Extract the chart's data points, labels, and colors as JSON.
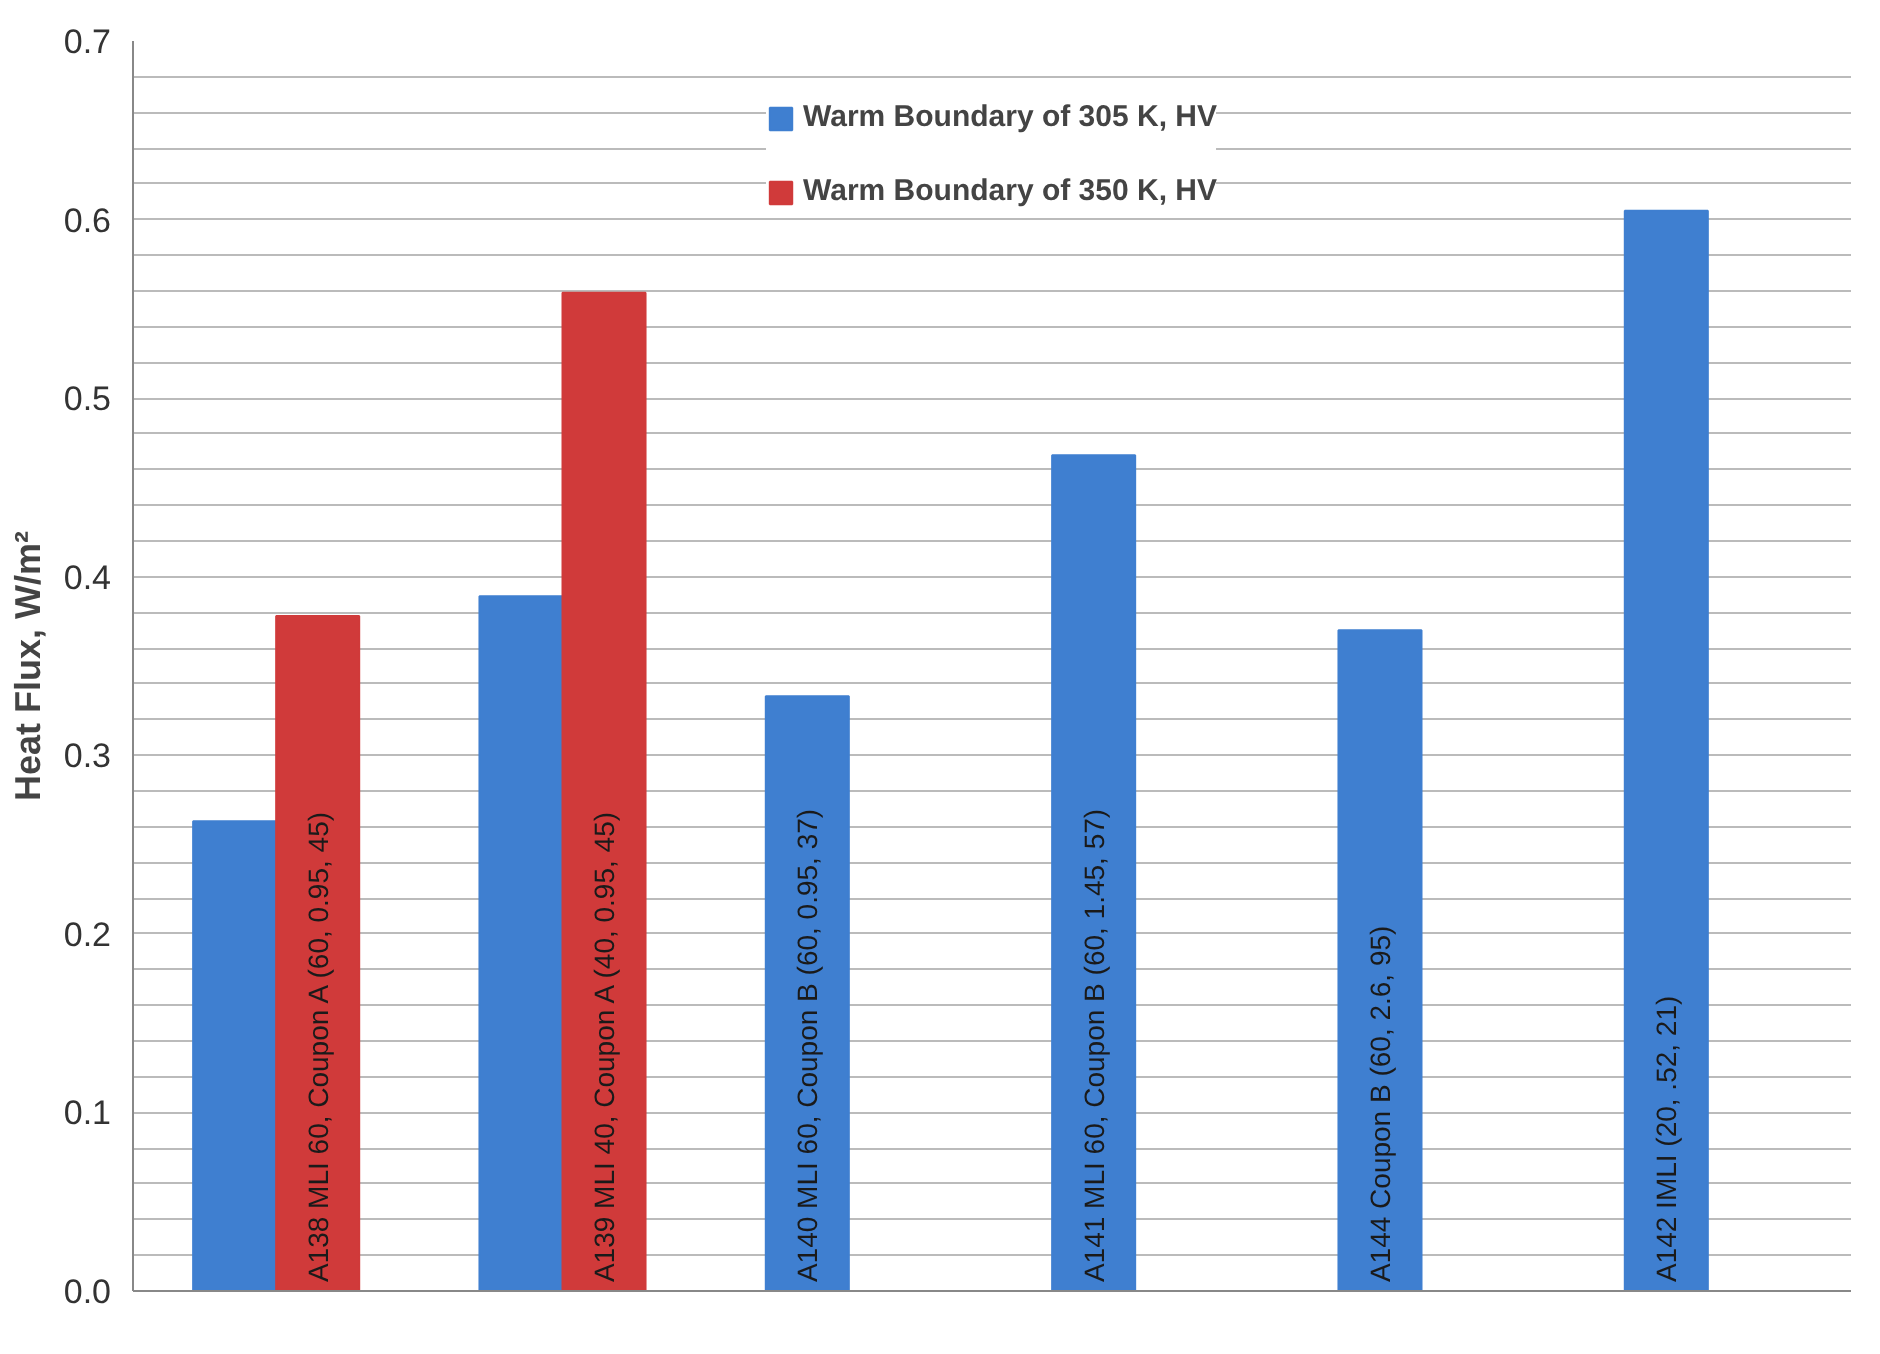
{
  "chart_data": {
    "type": "bar",
    "ylabel": "Heat Flux, W/m²",
    "categories": [
      "A138 MLI 60, Coupon A (60, 0.95, 45)",
      "A139 MLI 40, Coupon A (40, 0.95, 45)",
      "A140 MLI 60, Coupon B (60, 0.95, 37)",
      "A141 MLI 60, Coupon B (60, 1.45, 57)",
      "A144 Coupon B (60, 2.6, 95)",
      "A142 IMLI (20, .52, 21)"
    ],
    "series": [
      {
        "name": "Warm Boundary of 305 K, HV",
        "color": "#3f7fd0",
        "values": [
          0.263,
          0.389,
          0.333,
          0.468,
          0.37,
          0.605
        ]
      },
      {
        "name": "Warm Boundary of 350 K, HV",
        "color": "#d03a3a",
        "values": [
          0.378,
          0.559,
          null,
          null,
          null,
          null
        ]
      }
    ],
    "ylim": [
      0,
      0.7
    ],
    "yticks": [
      {
        "value": 0,
        "label": "0.0"
      },
      {
        "value": 0.02,
        "label": null
      },
      {
        "value": 0.04,
        "label": null
      },
      {
        "value": 0.06,
        "label": null
      },
      {
        "value": 0.08,
        "label": null
      },
      0.1,
      {
        "value": 0.12,
        "label": null
      },
      {
        "value": 0.14,
        "label": null
      },
      {
        "value": 0.16,
        "label": null
      },
      {
        "value": 0.18,
        "label": null
      },
      0.2,
      {
        "value": 0.22,
        "label": null
      },
      {
        "value": 0.24,
        "label": null
      },
      {
        "value": 0.26,
        "label": null
      },
      {
        "value": 0.28,
        "label": null
      },
      0.3,
      {
        "value": 0.32,
        "label": null
      },
      {
        "value": 0.34,
        "label": null
      },
      {
        "value": 0.36,
        "label": null
      },
      {
        "value": 0.38,
        "label": null
      },
      0.4,
      {
        "value": 0.42,
        "label": null
      },
      {
        "value": 0.44,
        "label": null
      },
      {
        "value": 0.46,
        "label": null
      },
      {
        "value": 0.48,
        "label": null
      },
      0.5,
      {
        "value": 0.52,
        "label": null
      },
      {
        "value": 0.54,
        "label": null
      },
      {
        "value": 0.56,
        "label": null
      },
      {
        "value": 0.58,
        "label": null
      },
      0.6,
      {
        "value": 0.62,
        "label": null
      },
      {
        "value": 0.64,
        "label": null
      },
      {
        "value": 0.66,
        "label": null
      },
      {
        "value": 0.68,
        "label": null
      },
      0.7
    ],
    "grid": "y",
    "legend": "top"
  }
}
